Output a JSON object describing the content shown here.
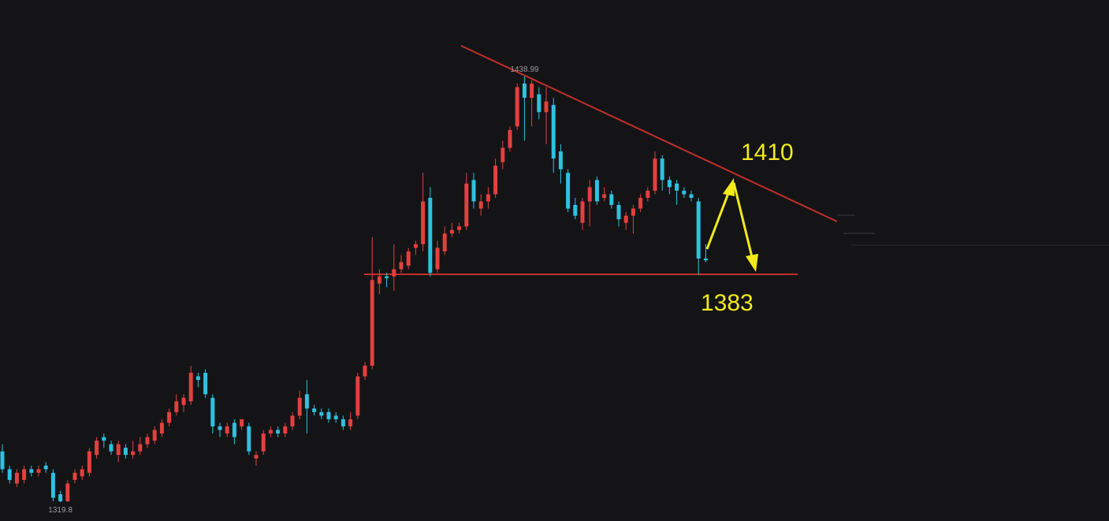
{
  "chart_data": {
    "type": "candlestick",
    "up_color": "#e2403f",
    "down_color": "#2fc1e0",
    "ylim": [
      1314.5,
      1460.4
    ],
    "high_label": "1438.99",
    "low_label": "1319.8",
    "annotations": [
      "1410",
      "1383"
    ],
    "open": [
      1334,
      1329,
      1325,
      1326,
      1329,
      1328,
      1330,
      1328,
      1322,
      1320,
      1326,
      1327,
      1328,
      1333,
      1338,
      1336,
      1333,
      1335,
      1333,
      1334,
      1336,
      1337,
      1339,
      1342,
      1345,
      1347,
      1348,
      1355,
      1356,
      1349,
      1341,
      1339,
      1342,
      1341,
      1341,
      1332,
      1334,
      1339,
      1340,
      1339,
      1341,
      1344,
      1350,
      1346,
      1345,
      1345,
      1344,
      1343,
      1341,
      1344,
      1355,
      1358,
      1381,
      1383,
      1383,
      1385,
      1386,
      1391,
      1392,
      1405,
      1385,
      1390,
      1395,
      1396,
      1397,
      1410,
      1402,
      1404,
      1406,
      1415,
      1419,
      1425,
      1437,
      1433,
      1434,
      1429,
      1431,
      1418,
      1412,
      1403,
      1398,
      1404,
      1410,
      1405,
      1406,
      1403,
      1398,
      1400,
      1402,
      1405,
      1407,
      1416,
      1410,
      1409,
      1407,
      1406,
      1404,
      1388
    ],
    "close": [
      1329,
      1326,
      1328,
      1329,
      1328,
      1329,
      1329,
      1321,
      1320,
      1325,
      1328,
      1329,
      1334,
      1337,
      1337,
      1334,
      1336,
      1333,
      1334,
      1336,
      1338,
      1340,
      1342,
      1345,
      1348,
      1349,
      1356,
      1354,
      1350,
      1341,
      1340,
      1341,
      1338,
      1343,
      1334,
      1333,
      1339,
      1340,
      1339,
      1341,
      1344,
      1349,
      1346,
      1345,
      1344,
      1343,
      1343,
      1341,
      1343,
      1355,
      1358,
      1382,
      1383,
      1382.5,
      1385,
      1387,
      1390,
      1392,
      1404,
      1384,
      1391,
      1395,
      1396,
      1397,
      1409,
      1404,
      1404,
      1406,
      1414,
      1419,
      1424,
      1436,
      1433,
      1437,
      1429,
      1432,
      1416,
      1413,
      1402,
      1400,
      1404,
      1408,
      1404,
      1406,
      1403,
      1399,
      1400,
      1402,
      1405,
      1407,
      1416,
      1410,
      1408,
      1407,
      1406,
      1405,
      1388,
      1387.5
    ],
    "high": [
      1336,
      1330,
      1329,
      1330,
      1330,
      1330,
      1331,
      1329,
      1323,
      1326,
      1329,
      1330,
      1335,
      1338,
      1339,
      1337,
      1337,
      1336,
      1337,
      1338,
      1339,
      1341,
      1343,
      1346,
      1350,
      1350,
      1358,
      1356,
      1357,
      1350,
      1342,
      1342,
      1343,
      1343,
      1342,
      1334,
      1340,
      1341,
      1341,
      1342,
      1345,
      1351,
      1354,
      1347,
      1346,
      1346,
      1345,
      1344,
      1345,
      1356,
      1359,
      1394,
      1385,
      1384,
      1392,
      1389,
      1391,
      1393,
      1412,
      1408,
      1393,
      1397,
      1398,
      1398,
      1412,
      1412,
      1406,
      1408,
      1416,
      1421,
      1425,
      1437,
      1438.99,
      1438,
      1436,
      1436,
      1433,
      1420,
      1413,
      1405,
      1405,
      1410,
      1411,
      1408,
      1407,
      1404,
      1401,
      1403,
      1406,
      1408,
      1418,
      1417,
      1411,
      1410,
      1408,
      1407,
      1405,
      1392
    ],
    "low": [
      1328,
      1325,
      1324,
      1325,
      1327,
      1327,
      1328,
      1320,
      1319.8,
      1319.9,
      1325,
      1326,
      1327,
      1332,
      1335,
      1333,
      1331,
      1332,
      1332,
      1333,
      1335,
      1336,
      1338,
      1341,
      1344,
      1345,
      1347,
      1352,
      1349,
      1339,
      1338,
      1338,
      1336,
      1340,
      1333,
      1330,
      1333,
      1338,
      1338,
      1338,
      1340,
      1343,
      1339,
      1344,
      1343,
      1342,
      1342,
      1340,
      1340,
      1343,
      1354,
      1357,
      1378,
      1380,
      1379,
      1384,
      1385,
      1389,
      1390,
      1383,
      1384,
      1389,
      1394,
      1395,
      1396,
      1402,
      1400,
      1402,
      1405,
      1413,
      1418,
      1424,
      1421,
      1425,
      1427,
      1420,
      1412,
      1409,
      1401,
      1399,
      1396,
      1397,
      1403,
      1404,
      1402,
      1397,
      1396,
      1395,
      1401,
      1404,
      1406,
      1407,
      1406,
      1403,
      1405,
      1404,
      1383.4,
      1387
    ]
  }
}
